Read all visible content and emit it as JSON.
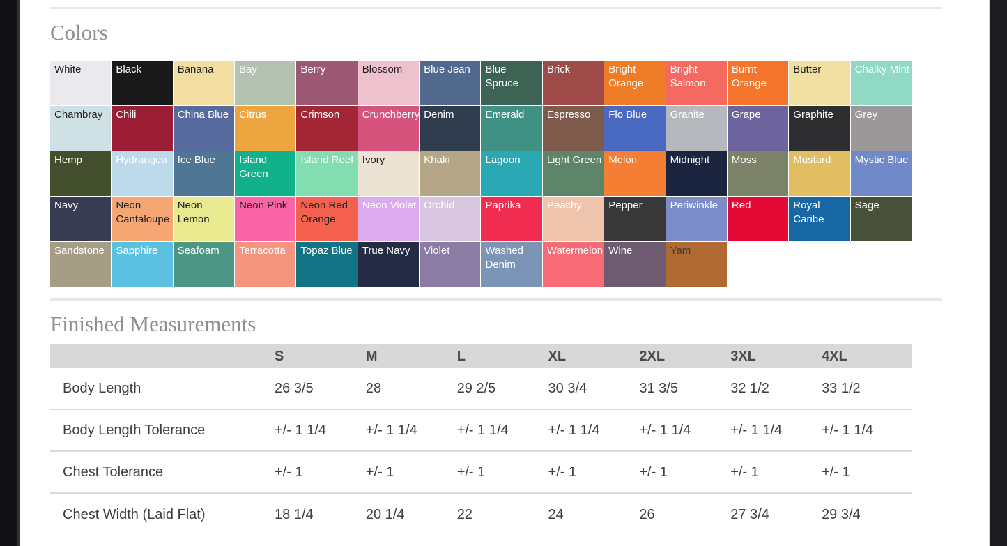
{
  "colors_section": {
    "heading": "Colors",
    "swatches": [
      {
        "name": "White",
        "bg": "#e9e9ee",
        "text_color": "#1f1f1f"
      },
      {
        "name": "Black",
        "bg": "#191919",
        "text_color": "#ffffff"
      },
      {
        "name": "Banana",
        "bg": "#f2dea1",
        "text_color": "#1f1f1f"
      },
      {
        "name": "Bay",
        "bg": "#b4c3b1",
        "text_color": "#ffffff"
      },
      {
        "name": "Berry",
        "bg": "#9c5873",
        "text_color": "#ffffff"
      },
      {
        "name": "Blossom",
        "bg": "#edc1ce",
        "text_color": "#1f1f1f"
      },
      {
        "name": "Blue Jean",
        "bg": "#51698c",
        "text_color": "#ffffff"
      },
      {
        "name": "Blue Spruce",
        "bg": "#3d6354",
        "text_color": "#ffffff"
      },
      {
        "name": "Brick",
        "bg": "#9e4a48",
        "text_color": "#ffffff"
      },
      {
        "name": "Bright Orange",
        "bg": "#ef7d28",
        "text_color": "#ffffff"
      },
      {
        "name": "Bright Salmon",
        "bg": "#f56a60",
        "text_color": "#ffffff"
      },
      {
        "name": "Burnt Orange",
        "bg": "#f4762c",
        "text_color": "#ffffff"
      },
      {
        "name": "Butter",
        "bg": "#f2e0a3",
        "text_color": "#1f1f1f"
      },
      {
        "name": "Chalky Mint",
        "bg": "#90d9c5",
        "text_color": "#ffffff"
      },
      {
        "name": "Chambray",
        "bg": "#d0e1e5",
        "text_color": "#1f1f1f"
      },
      {
        "name": "Chili",
        "bg": "#9c1d36",
        "text_color": "#ffffff"
      },
      {
        "name": "China Blue",
        "bg": "#566a9e",
        "text_color": "#ffffff"
      },
      {
        "name": "Citrus",
        "bg": "#eda63f",
        "text_color": "#ffffff"
      },
      {
        "name": "Crimson",
        "bg": "#a32637",
        "text_color": "#ffffff"
      },
      {
        "name": "Crunchberry",
        "bg": "#d5537d",
        "text_color": "#ffffff"
      },
      {
        "name": "Denim",
        "bg": "#2e3c4e",
        "text_color": "#ffffff"
      },
      {
        "name": "Emerald",
        "bg": "#3f9183",
        "text_color": "#ffffff"
      },
      {
        "name": "Espresso",
        "bg": "#7d5a4c",
        "text_color": "#ffffff"
      },
      {
        "name": "Flo Blue",
        "bg": "#4a6ac1",
        "text_color": "#ffffff"
      },
      {
        "name": "Granite",
        "bg": "#b5b8bd",
        "text_color": "#ffffff"
      },
      {
        "name": "Grape",
        "bg": "#6e649d",
        "text_color": "#ffffff"
      },
      {
        "name": "Graphite",
        "bg": "#2e2e30",
        "text_color": "#ffffff"
      },
      {
        "name": "Grey",
        "bg": "#9c9899",
        "text_color": "#ffffff"
      },
      {
        "name": "Hemp",
        "bg": "#44502d",
        "text_color": "#ffffff"
      },
      {
        "name": "Hydrangea",
        "bg": "#bddaeb",
        "text_color": "#ffffff"
      },
      {
        "name": "Ice Blue",
        "bg": "#507696",
        "text_color": "#ffffff"
      },
      {
        "name": "Island Green",
        "bg": "#11b28b",
        "text_color": "#ffffff"
      },
      {
        "name": "Island Reef",
        "bg": "#82ddb1",
        "text_color": "#ffffff"
      },
      {
        "name": "Ivory",
        "bg": "#ece3d5",
        "text_color": "#1f1f1f"
      },
      {
        "name": "Khaki",
        "bg": "#b4a686",
        "text_color": "#ffffff"
      },
      {
        "name": "Lagoon",
        "bg": "#2aa9b4",
        "text_color": "#ffffff"
      },
      {
        "name": "Light Green",
        "bg": "#5e8569",
        "text_color": "#ffffff"
      },
      {
        "name": "Melon",
        "bg": "#f57e35",
        "text_color": "#ffffff"
      },
      {
        "name": "Midnight",
        "bg": "#1c2540",
        "text_color": "#ffffff"
      },
      {
        "name": "Moss",
        "bg": "#7d8369",
        "text_color": "#ffffff"
      },
      {
        "name": "Mustard",
        "bg": "#e1be62",
        "text_color": "#ffffff"
      },
      {
        "name": "Mystic Blue",
        "bg": "#6f89c9",
        "text_color": "#ffffff"
      },
      {
        "name": "Navy",
        "bg": "#373c52",
        "text_color": "#ffffff"
      },
      {
        "name": "Neon Cantaloupe",
        "bg": "#f6a673",
        "text_color": "#1f1f1f"
      },
      {
        "name": "Neon Lemon",
        "bg": "#e9e990",
        "text_color": "#1f1f1f"
      },
      {
        "name": "Neon Pink",
        "bg": "#f864a5",
        "text_color": "#1f1f1f"
      },
      {
        "name": "Neon Red Orange",
        "bg": "#f5614f",
        "text_color": "#1f1f1f"
      },
      {
        "name": "Neon Violet",
        "bg": "#dcabee",
        "text_color": "#ffffff"
      },
      {
        "name": "Orchid",
        "bg": "#d7c6dd",
        "text_color": "#ffffff"
      },
      {
        "name": "Paprika",
        "bg": "#f02c51",
        "text_color": "#ffffff"
      },
      {
        "name": "Peachy",
        "bg": "#efc4ad",
        "text_color": "#ffffff"
      },
      {
        "name": "Pepper",
        "bg": "#383838",
        "text_color": "#ffffff"
      },
      {
        "name": "Periwinkle",
        "bg": "#7c8dc9",
        "text_color": "#ffffff"
      },
      {
        "name": "Red",
        "bg": "#e40a36",
        "text_color": "#ffffff"
      },
      {
        "name": "Royal Caribe",
        "bg": "#1867a5",
        "text_color": "#ffffff"
      },
      {
        "name": "Sage",
        "bg": "#48503a",
        "text_color": "#ffffff"
      },
      {
        "name": "Sandstone",
        "bg": "#a59d85",
        "text_color": "#ffffff"
      },
      {
        "name": "Sapphire",
        "bg": "#5cc1e1",
        "text_color": "#ffffff"
      },
      {
        "name": "Seafoam",
        "bg": "#4e9684",
        "text_color": "#ffffff"
      },
      {
        "name": "Terracotta",
        "bg": "#f5947f",
        "text_color": "#ffffff"
      },
      {
        "name": "Topaz Blue",
        "bg": "#127384",
        "text_color": "#ffffff"
      },
      {
        "name": "True Navy",
        "bg": "#232c42",
        "text_color": "#ffffff"
      },
      {
        "name": "Violet",
        "bg": "#8b7ca6",
        "text_color": "#ffffff"
      },
      {
        "name": "Washed Denim",
        "bg": "#7c94b6",
        "text_color": "#ffffff"
      },
      {
        "name": "Watermelon",
        "bg": "#f66b76",
        "text_color": "#ffffff"
      },
      {
        "name": "Wine",
        "bg": "#6e5a71",
        "text_color": "#ffffff"
      },
      {
        "name": "Yam",
        "bg": "#b16a31",
        "text_color": "#3a3a3a"
      }
    ]
  },
  "measurements_section": {
    "heading": "Finished Measurements",
    "table": {
      "columns": [
        "S",
        "M",
        "L",
        "XL",
        "2XL",
        "3XL",
        "4XL"
      ],
      "rows": [
        {
          "label": "Body Length",
          "values": [
            "26 3/5",
            "28",
            "29 2/5",
            "30 3/4",
            "31 3/5",
            "32 1/2",
            "33 1/2"
          ]
        },
        {
          "label": "Body Length Tolerance",
          "values": [
            "+/- 1 1/4",
            "+/- 1 1/4",
            "+/- 1 1/4",
            "+/- 1 1/4",
            "+/- 1 1/4",
            "+/- 1 1/4",
            "+/- 1 1/4"
          ]
        },
        {
          "label": "Chest Tolerance",
          "values": [
            "+/- 1",
            "+/- 1",
            "+/- 1",
            "+/- 1",
            "+/- 1",
            "+/- 1",
            "+/- 1"
          ]
        },
        {
          "label": "Chest Width (Laid Flat)",
          "values": [
            "18 1/4",
            "20 1/4",
            "22",
            "24",
            "26",
            "27 3/4",
            "29 3/4"
          ]
        }
      ]
    }
  }
}
